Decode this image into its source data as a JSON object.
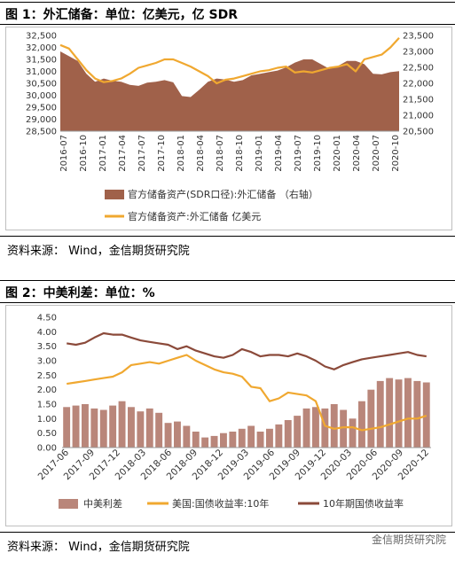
{
  "figure1": {
    "title": "图 1：外汇储备：单位：亿美元，亿 SDR",
    "source": "资料来源：   Wind，金信期货研究院",
    "chart_data": {
      "type": "area+line",
      "x_tick_labels": [
        "2016-07",
        "2016-10",
        "2017-01",
        "2017-04",
        "2017-07",
        "2017-10",
        "2018-01",
        "2018-04",
        "2018-07",
        "2018-10",
        "2019-01",
        "2019-04",
        "2019-07",
        "2019-10",
        "2020-01",
        "2020-04",
        "2020-07",
        "2020-10"
      ],
      "y_left_ticks": [
        "28,500",
        "29,000",
        "29,500",
        "30,000",
        "30,500",
        "31,000",
        "31,500",
        "32,000",
        "32,500"
      ],
      "y_left_range": [
        28500,
        32500
      ],
      "y_right_ticks": [
        "20,500",
        "21,000",
        "21,500",
        "22,000",
        "22,500",
        "23,000",
        "23,500"
      ],
      "y_right_range": [
        20500,
        23500
      ],
      "series": [
        {
          "name": "官方储备资产(SDR口径):外汇储备 （右轴）",
          "axis": "right",
          "kind": "area",
          "color": "#A0614A",
          "values": [
            23000,
            22850,
            22700,
            22300,
            22050,
            22150,
            22080,
            22050,
            21950,
            21920,
            22020,
            22050,
            22100,
            22030,
            21600,
            21570,
            21800,
            22050,
            22150,
            22120,
            22050,
            22100,
            22250,
            22300,
            22350,
            22400,
            22500,
            22650,
            22750,
            22750,
            22600,
            22450,
            22550,
            22700,
            22700,
            22600,
            22300,
            22280,
            22350,
            22380
          ]
        },
        {
          "name": "官方储备资产:外汇储备  亿美元",
          "axis": "left",
          "kind": "line",
          "color": "#F0A830",
          "values": [
            32100,
            31950,
            31500,
            31050,
            30700,
            30550,
            30600,
            30700,
            30900,
            31150,
            31250,
            31350,
            31500,
            31500,
            31350,
            31200,
            31000,
            30800,
            30500,
            30650,
            30700,
            30800,
            30900,
            31000,
            31050,
            31150,
            31200,
            30950,
            31000,
            30950,
            31050,
            31150,
            31200,
            31300,
            31000,
            31500,
            31600,
            31700,
            32000,
            32400
          ]
        }
      ]
    }
  },
  "figure2": {
    "title": "图 2：中美利差：单位：%",
    "source": "资料来源：   Wind，金信期货研究院",
    "watermark": "金信期货研究院",
    "chart_data": {
      "type": "bar+line",
      "x_tick_labels": [
        "2017-06",
        "2017-09",
        "2017-12",
        "2018-03",
        "2018-06",
        "2018-09",
        "2018-12",
        "2019-03",
        "2019-06",
        "2019-09",
        "2019-12",
        "2020-03",
        "2020-06",
        "2020-09",
        "2020-12"
      ],
      "y_ticks": [
        "0.00",
        "0.50",
        "1.00",
        "1.50",
        "2.00",
        "2.50",
        "3.00",
        "3.50",
        "4.00",
        "4.50"
      ],
      "y_range": [
        0,
        4.5
      ],
      "series": [
        {
          "name": "中美利差",
          "kind": "bar",
          "color": "#B9867A",
          "values": [
            1.4,
            1.45,
            1.5,
            1.35,
            1.3,
            1.45,
            1.6,
            1.4,
            1.25,
            1.35,
            1.2,
            0.85,
            0.9,
            0.75,
            0.55,
            0.35,
            0.4,
            0.5,
            0.55,
            0.65,
            0.75,
            0.55,
            0.65,
            0.8,
            0.95,
            1.1,
            1.35,
            1.4,
            1.35,
            1.5,
            1.3,
            1.0,
            1.6,
            2.0,
            2.3,
            2.4,
            2.35,
            2.4,
            2.3,
            2.25
          ]
        },
        {
          "name": "美国:国债收益率:10年",
          "kind": "line",
          "color": "#F0A830",
          "values": [
            2.2,
            2.25,
            2.3,
            2.35,
            2.4,
            2.45,
            2.6,
            2.85,
            2.9,
            2.95,
            2.9,
            3.0,
            3.1,
            3.2,
            3.0,
            2.85,
            2.7,
            2.6,
            2.55,
            2.45,
            2.1,
            2.05,
            1.6,
            1.7,
            1.9,
            1.85,
            1.8,
            1.6,
            0.75,
            0.65,
            0.7,
            0.7,
            0.6,
            0.65,
            0.7,
            0.8,
            0.9,
            1.0,
            1.0,
            1.1
          ]
        },
        {
          "name": "10年期国债收益率",
          "kind": "line",
          "color": "#8B4A3A",
          "values": [
            3.6,
            3.55,
            3.62,
            3.8,
            3.95,
            3.9,
            3.9,
            3.8,
            3.7,
            3.65,
            3.6,
            3.55,
            3.4,
            3.5,
            3.35,
            3.25,
            3.15,
            3.1,
            3.2,
            3.4,
            3.3,
            3.15,
            3.2,
            3.2,
            3.15,
            3.25,
            3.15,
            3.0,
            2.8,
            2.7,
            2.85,
            2.95,
            3.05,
            3.1,
            3.15,
            3.2,
            3.25,
            3.3,
            3.2,
            3.15
          ]
        }
      ]
    }
  }
}
